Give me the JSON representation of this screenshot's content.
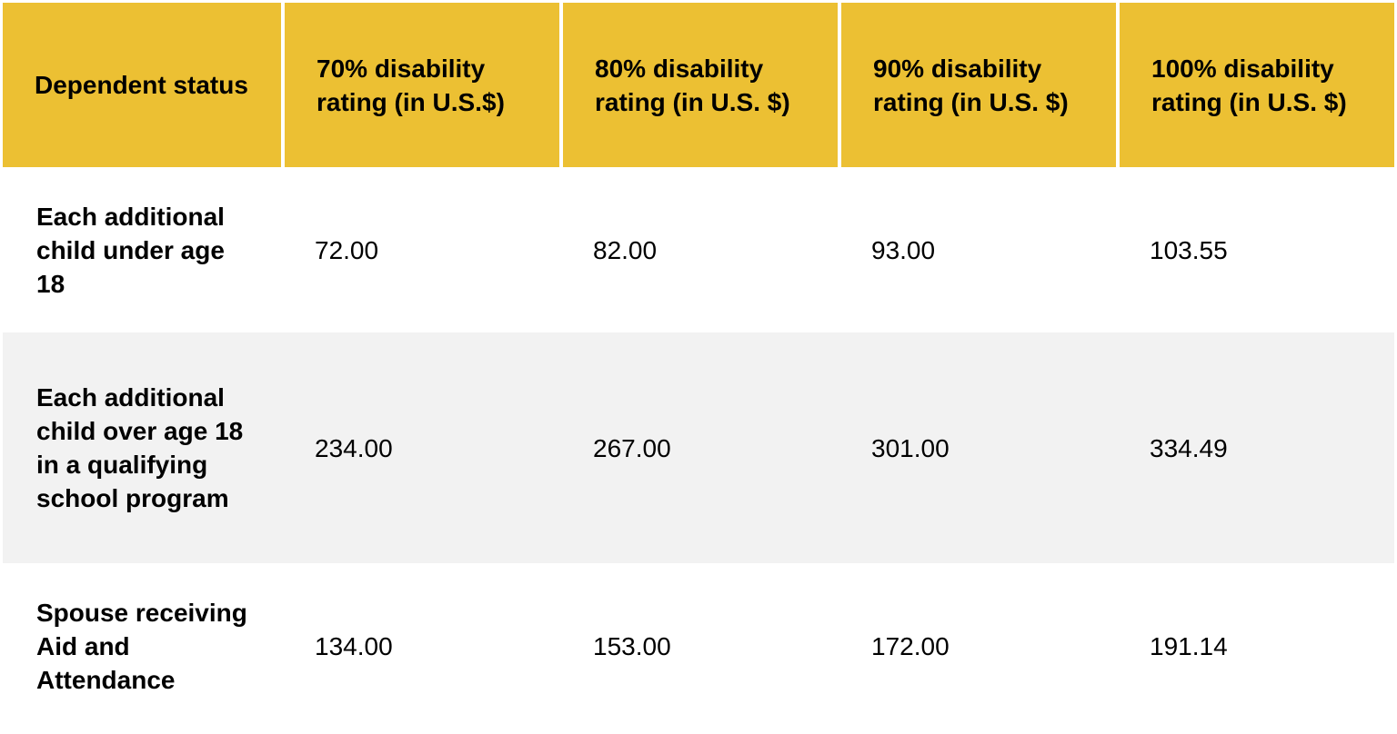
{
  "header": {
    "status": "Dependent status",
    "rating_70": "70% disability rating (in U.S.$)",
    "rating_80": "80% disability rating (in U.S. $)",
    "rating_90": "90% disability rating (in U.S. $)",
    "rating_100": "100% disability rating (in U.S. $)"
  },
  "rows": [
    {
      "status": "Each additional child under age 18",
      "rating_70": "72.00",
      "rating_80": "82.00",
      "rating_90": "93.00",
      "rating_100": "103.55"
    },
    {
      "status": "Each additional child over age 18 in a qualifying school program",
      "rating_70": "234.00",
      "rating_80": "267.00",
      "rating_90": "301.00",
      "rating_100": "334.49"
    },
    {
      "status": "Spouse receiving Aid and Attendance",
      "rating_70": "134.00",
      "rating_80": "153.00",
      "rating_90": "172.00",
      "rating_100": "191.14"
    }
  ],
  "colors": {
    "header_background": "#ecc033",
    "striped_row_background": "#f2f2f2"
  }
}
